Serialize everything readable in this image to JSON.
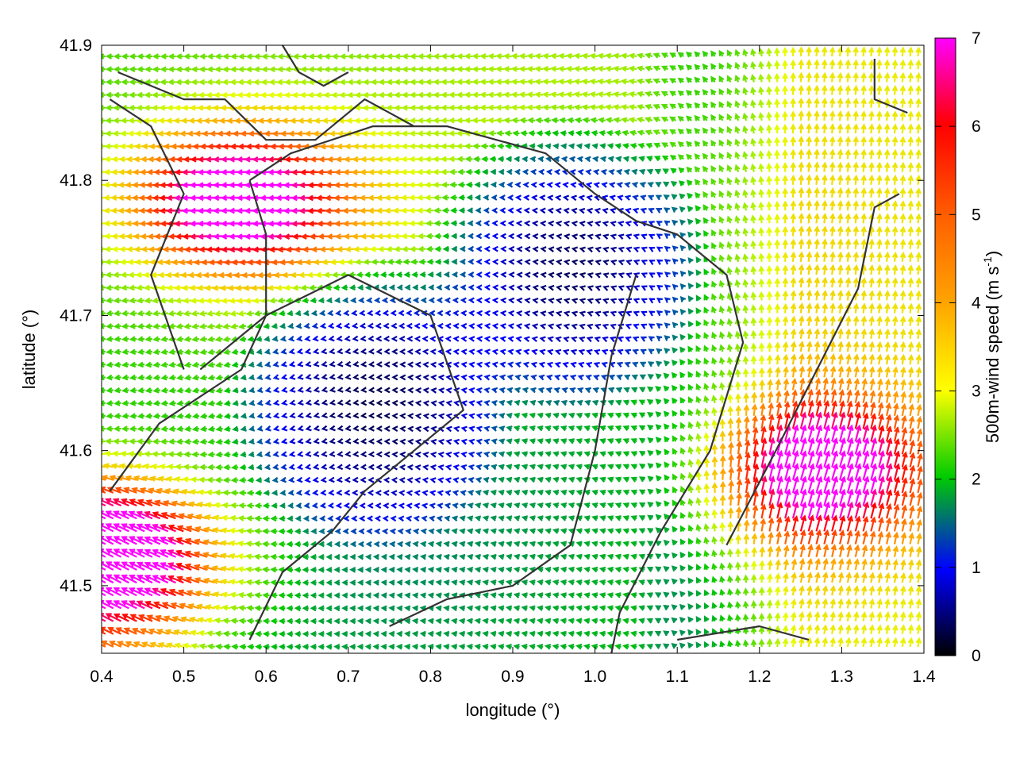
{
  "chart_data": {
    "type": "heatmap",
    "subtype": "wind-vector-field",
    "title": "",
    "xlabel": "longitude (°)",
    "ylabel": "latitude (°)",
    "colorbar_label": "500m-wind speed (m s",
    "colorbar_label_sup": "-1",
    "colorbar_label_end": ")",
    "xlim": [
      0.4,
      1.4
    ],
    "ylim": [
      41.45,
      41.9
    ],
    "x_ticks": [
      0.4,
      0.5,
      0.6,
      0.7,
      0.8,
      0.9,
      1.0,
      1.1,
      1.2,
      1.3,
      1.4
    ],
    "x_tick_labels": [
      "0.4",
      "0.5",
      "0.6",
      "0.7",
      "0.8",
      "0.9",
      "1.0",
      "1.1",
      "1.2",
      "1.3",
      "1.4"
    ],
    "y_ticks": [
      41.5,
      41.6,
      41.7,
      41.8,
      41.9
    ],
    "y_tick_labels": [
      "41.5",
      "41.6",
      "41.7",
      "41.8",
      "41.9"
    ],
    "colorbar_range": [
      0,
      7
    ],
    "colorbar_ticks": [
      0,
      1,
      2,
      3,
      4,
      5,
      6,
      7
    ],
    "colorbar_tick_labels": [
      "0",
      "1",
      "2",
      "3",
      "4",
      "5",
      "6",
      "7"
    ],
    "colormap": [
      "#000000",
      "#0000ff",
      "#00cc00",
      "#ffff00",
      "#ffa500",
      "#ff0000",
      "#ff00ff"
    ],
    "grid": false,
    "legend": "none",
    "wind_field_centers": [
      {
        "lon": 0.73,
        "lat": 41.64,
        "note": "calm core (speed ~0-1)"
      },
      {
        "lon": 0.97,
        "lat": 41.74,
        "note": "calm core (speed ~0-1)"
      }
    ],
    "wind_jets": [
      {
        "lon": 0.58,
        "lat": 41.785,
        "speed": 6.2,
        "direction": "westward"
      },
      {
        "lon": 0.42,
        "lat": 41.52,
        "speed": 6.8,
        "direction": "north-westward"
      },
      {
        "lon": 1.27,
        "lat": 41.58,
        "speed": 5.4,
        "direction": "north-eastward"
      }
    ],
    "contour_color": "#333333"
  }
}
